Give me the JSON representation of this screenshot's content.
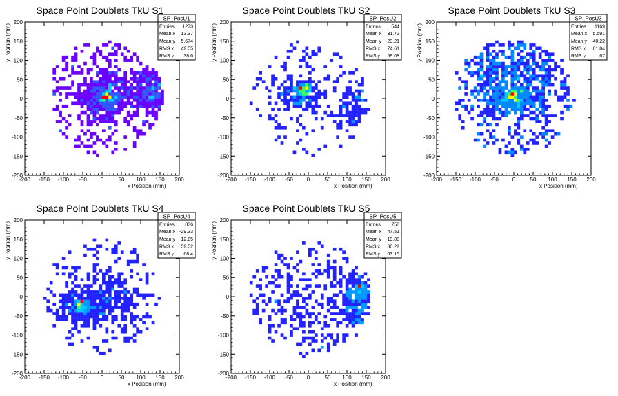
{
  "chart_data": [
    {
      "type": "heatmap",
      "title": "Space Point Doublets TkU S1",
      "xlabel": "x Position (mm)",
      "ylabel": "y Position (mm)",
      "xlim": [
        -200,
        200
      ],
      "ylim": [
        -200,
        200
      ],
      "xticks": [
        "-200",
        "-150",
        "-100",
        "-50",
        "0",
        "50",
        "100",
        "150",
        "200"
      ],
      "yticks": [
        "-200",
        "-150",
        "-100",
        "-50",
        "0",
        "50",
        "100",
        "150",
        "200"
      ],
      "stats": {
        "name": "SP_PosU1",
        "rows": [
          {
            "label": "Entries",
            "value": "1273"
          },
          {
            "label": "Mean x",
            "value": "13.37"
          },
          {
            "label": "Mean y",
            "value": "-5.674"
          },
          {
            "label": "RMS x",
            "value": "49.55"
          },
          {
            "label": "RMS y",
            "value": "38.6"
          }
        ]
      },
      "palette": "violet",
      "cluster": {
        "center": [
          5,
          5
        ],
        "spread": [
          35,
          30
        ],
        "peak": [
          10,
          5
        ]
      },
      "secondary": {
        "center": [
          120,
          20
        ],
        "spread": [
          25,
          30
        ]
      },
      "extent": {
        "x": [
          -130,
          160
        ],
        "y": [
          -160,
          150
        ]
      },
      "entries": 1273
    },
    {
      "type": "heatmap",
      "title": "Space Point Doublets TkU S2",
      "xlabel": "x Position (mm)",
      "ylabel": "y Position (mm)",
      "xlim": [
        -200,
        200
      ],
      "ylim": [
        -200,
        200
      ],
      "xticks": [
        "-200",
        "-150",
        "-100",
        "-50",
        "0",
        "50",
        "100",
        "150",
        "200"
      ],
      "yticks": [
        "-200",
        "-150",
        "-100",
        "-50",
        "0",
        "50",
        "100",
        "150",
        "200"
      ],
      "stats": {
        "name": "SP_PosU2",
        "rows": [
          {
            "label": "Entries",
            "value": "544"
          },
          {
            "label": "Mean x",
            "value": "31.72"
          },
          {
            "label": "Mean y",
            "value": "-23.21"
          },
          {
            "label": "RMS x",
            "value": "74.61"
          },
          {
            "label": "RMS y",
            "value": "59.08"
          }
        ]
      },
      "palette": "blue",
      "cluster": {
        "center": [
          -20,
          10
        ],
        "spread": [
          30,
          20
        ],
        "peak": [
          -10,
          25
        ]
      },
      "secondary": {
        "center": [
          120,
          -20
        ],
        "spread": [
          25,
          35
        ]
      },
      "extent": {
        "x": [
          -150,
          160
        ],
        "y": [
          -160,
          150
        ]
      },
      "entries": 544
    },
    {
      "type": "heatmap",
      "title": "Space Point Doublets TkU S3",
      "xlabel": "x Position (mm)",
      "ylabel": "y Position (mm)",
      "xlim": [
        -200,
        200
      ],
      "ylim": [
        -200,
        200
      ],
      "xticks": [
        "-200",
        "-150",
        "-100",
        "-50",
        "0",
        "50",
        "100",
        "150",
        "200"
      ],
      "yticks": [
        "-200",
        "-150",
        "-100",
        "-50",
        "0",
        "50",
        "100",
        "150",
        "200"
      ],
      "stats": {
        "name": "SP_PosU3",
        "rows": [
          {
            "label": "Entries",
            "value": "1169"
          },
          {
            "label": "Mean x",
            "value": "5.591"
          },
          {
            "label": "Mean y",
            "value": "40.22"
          },
          {
            "label": "RMS x",
            "value": "61.84"
          },
          {
            "label": "RMS y",
            "value": "67"
          }
        ]
      },
      "palette": "rainbow",
      "cluster": {
        "center": [
          0,
          60
        ],
        "spread": [
          70,
          50
        ],
        "peak": [
          0,
          5
        ]
      },
      "secondary": {
        "center": [
          0,
          0
        ],
        "spread": [
          40,
          20
        ]
      },
      "extent": {
        "x": [
          -150,
          160
        ],
        "y": [
          -160,
          150
        ]
      },
      "entries": 1169
    },
    {
      "type": "heatmap",
      "title": "Space Point Doublets TkU S4",
      "xlabel": "x Position (mm)",
      "ylabel": "y Position (mm)",
      "xlim": [
        -200,
        200
      ],
      "ylim": [
        -200,
        200
      ],
      "xticks": [
        "-200",
        "-150",
        "-100",
        "-50",
        "0",
        "50",
        "100",
        "150",
        "200"
      ],
      "yticks": [
        "-200",
        "-150",
        "-100",
        "-50",
        "0",
        "50",
        "100",
        "150",
        "200"
      ],
      "stats": {
        "name": "SP_PosU4",
        "rows": [
          {
            "label": "Entries",
            "value": "836"
          },
          {
            "label": "Mean x",
            "value": "-29.33"
          },
          {
            "label": "Mean y",
            "value": "-12.85"
          },
          {
            "label": "RMS x",
            "value": "59.52"
          },
          {
            "label": "RMS y",
            "value": "68.4"
          }
        ]
      },
      "palette": "blue",
      "cluster": {
        "center": [
          -50,
          -30
        ],
        "spread": [
          35,
          20
        ],
        "peak": [
          -55,
          -20
        ]
      },
      "secondary": {
        "center": [
          20,
          0
        ],
        "spread": [
          40,
          30
        ]
      },
      "extent": {
        "x": [
          -150,
          160
        ],
        "y": [
          -160,
          150
        ]
      },
      "entries": 836
    },
    {
      "type": "heatmap",
      "title": "Space Point Doublets TkU S5",
      "xlabel": "x Position (mm)",
      "ylabel": "y Position (mm)",
      "xlim": [
        -200,
        200
      ],
      "ylim": [
        -200,
        200
      ],
      "xticks": [
        "-200",
        "-150",
        "-100",
        "-50",
        "0",
        "50",
        "100",
        "150",
        "200"
      ],
      "yticks": [
        "-200",
        "-150",
        "-100",
        "-50",
        "0",
        "50",
        "100",
        "150",
        "200"
      ],
      "stats": {
        "name": "SP_PosU5",
        "rows": [
          {
            "label": "Entries",
            "value": "758"
          },
          {
            "label": "Mean x",
            "value": "47.51"
          },
          {
            "label": "Mean y",
            "value": "-19.88"
          },
          {
            "label": "RMS x",
            "value": "80.22"
          },
          {
            "label": "RMS y",
            "value": "63.15"
          }
        ]
      },
      "palette": "blue",
      "cluster": {
        "center": [
          130,
          -10
        ],
        "spread": [
          25,
          35
        ],
        "peak": [
          135,
          25
        ]
      },
      "secondary": {
        "center": [
          0,
          -30
        ],
        "spread": [
          70,
          60
        ]
      },
      "extent": {
        "x": [
          -150,
          160
        ],
        "y": [
          -160,
          150
        ]
      },
      "entries": 758
    }
  ],
  "colors": {
    "violet": "#6a00ff",
    "blue": "#2222ff",
    "cyan": "#00ccff",
    "green": "#33ff66",
    "yellow": "#ffff00",
    "red": "#ff0000"
  }
}
